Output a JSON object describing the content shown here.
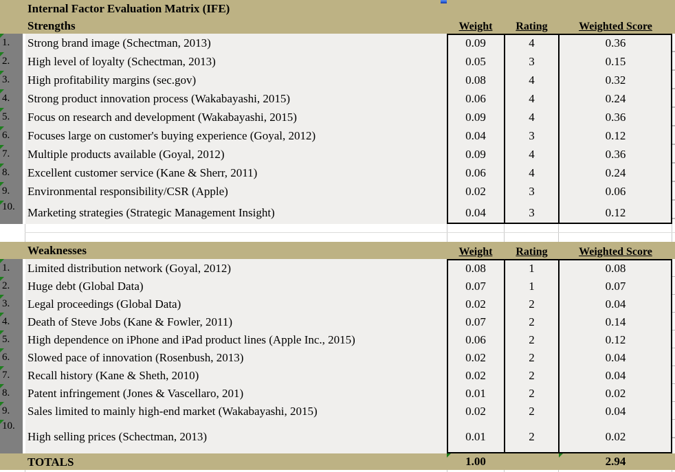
{
  "title": "Internal Factor Evaluation Matrix (IFE)",
  "columns": {
    "weight": "Weight",
    "rating": "Rating",
    "weighted_score": "Weighted Score"
  },
  "strengths": {
    "label": "Strengths",
    "items": [
      {
        "num": "1.",
        "factor": "Strong brand image (Schectman, 2013)",
        "weight": "0.09",
        "rating": "4",
        "score": "0.36"
      },
      {
        "num": "2.",
        "factor": "High level of loyalty (Schectman, 2013)",
        "weight": "0.05",
        "rating": "3",
        "score": "0.15"
      },
      {
        "num": "3.",
        "factor": "High profitability margins (sec.gov)",
        "weight": "0.08",
        "rating": "4",
        "score": "0.32"
      },
      {
        "num": "4.",
        "factor": "Strong product innovation process (Wakabayashi, 2015)",
        "weight": "0.06",
        "rating": "4",
        "score": "0.24"
      },
      {
        "num": "5.",
        "factor": "Focus on research and development (Wakabayashi, 2015)",
        "weight": "0.09",
        "rating": "4",
        "score": "0.36"
      },
      {
        "num": "6.",
        "factor": "Focuses large on customer's buying experience (Goyal, 2012)",
        "weight": "0.04",
        "rating": "3",
        "score": "0.12"
      },
      {
        "num": "7.",
        "factor": "Multiple products available (Goyal, 2012)",
        "weight": "0.09",
        "rating": "4",
        "score": "0.36"
      },
      {
        "num": "8.",
        "factor": "Excellent customer service (Kane & Sherr, 2011)",
        "weight": "0.06",
        "rating": "4",
        "score": "0.24"
      },
      {
        "num": "9.",
        "factor": "Environmental responsibility/CSR (Apple)",
        "weight": "0.02",
        "rating": "3",
        "score": "0.06"
      },
      {
        "num": "10.",
        "factor": "Marketing strategies (Strategic Management Insight)",
        "weight": "0.04",
        "rating": "3",
        "score": "0.12"
      }
    ]
  },
  "weaknesses": {
    "label": "Weaknesses",
    "items": [
      {
        "num": "1.",
        "factor": "Limited distribution network (Goyal, 2012)",
        "weight": "0.08",
        "rating": "1",
        "score": "0.08"
      },
      {
        "num": "2.",
        "factor": "Huge debt (Global Data)",
        "weight": "0.07",
        "rating": "1",
        "score": "0.07"
      },
      {
        "num": "3.",
        "factor": "Legal proceedings (Global Data)",
        "weight": "0.02",
        "rating": "2",
        "score": "0.04"
      },
      {
        "num": "4.",
        "factor": "Death of Steve Jobs (Kane & Fowler, 2011)",
        "weight": "0.07",
        "rating": "2",
        "score": "0.14"
      },
      {
        "num": "5.",
        "factor": "High dependence on iPhone and iPad product lines (Apple Inc., 2015)",
        "weight": "0.06",
        "rating": "2",
        "score": "0.12"
      },
      {
        "num": "6.",
        "factor": "Slowed pace of innovation (Rosenbush, 2013)",
        "weight": "0.02",
        "rating": "2",
        "score": "0.04"
      },
      {
        "num": "7.",
        "factor": "Recall history (Kane & Sheth, 2010)",
        "weight": "0.02",
        "rating": "2",
        "score": "0.04"
      },
      {
        "num": "8.",
        "factor": "Patent infringement (Jones & Vascellaro, 201)",
        "weight": "0.01",
        "rating": "2",
        "score": "0.02"
      },
      {
        "num": "9.",
        "factor": "Sales limited to mainly high-end market (Wakabayashi, 2015)",
        "weight": "0.02",
        "rating": "2",
        "score": "0.04"
      },
      {
        "num": "10.",
        "factor": "High selling prices (Schectman, 2013)",
        "weight": "0.01",
        "rating": "2",
        "score": "0.02"
      }
    ]
  },
  "totals": {
    "label": "TOTALS",
    "weight": "1.00",
    "score": "2.94"
  },
  "icons": {
    "error_triangle": "cell-error-indicator-triangle",
    "blue_marker": "embedded-object-marker"
  },
  "colors": {
    "band_khaki": "#bdb284",
    "number_column_gray": "#7f7f7f",
    "row_background": "#f0efed",
    "table_border": "#000000",
    "error_triangle_green": "#1e7e1e",
    "marker_blue": "#2d62d9"
  }
}
